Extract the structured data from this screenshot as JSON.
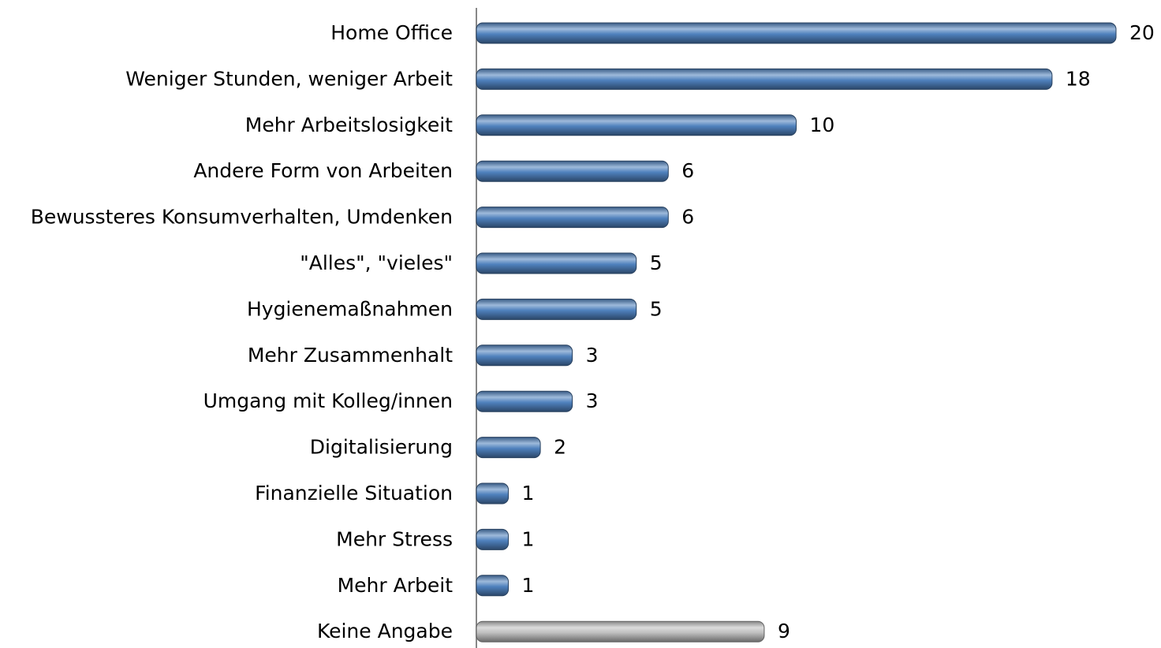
{
  "chart_data": {
    "type": "bar",
    "orientation": "horizontal",
    "categories": [
      "Home Office",
      "Weniger Stunden, weniger Arbeit",
      "Mehr Arbeitslosigkeit",
      "Andere Form von Arbeiten",
      "Bewussteres Konsumverhalten, Umdenken",
      "\"Alles\", \"vieles\"",
      "Hygienemaßnahmen",
      "Mehr Zusammenhalt",
      "Umgang mit Kolleg/innen",
      "Digitalisierung",
      "Finanzielle Situation",
      "Mehr Stress",
      "Mehr Arbeit",
      "Keine Angabe"
    ],
    "values": [
      20,
      18,
      10,
      6,
      6,
      5,
      5,
      3,
      3,
      2,
      1,
      1,
      1,
      9
    ],
    "colors": [
      "#4f81bd",
      "#4f81bd",
      "#4f81bd",
      "#4f81bd",
      "#4f81bd",
      "#4f81bd",
      "#4f81bd",
      "#4f81bd",
      "#4f81bd",
      "#4f81bd",
      "#4f81bd",
      "#4f81bd",
      "#4f81bd",
      "#c0c0c0"
    ],
    "xlim": [
      0,
      20
    ]
  }
}
